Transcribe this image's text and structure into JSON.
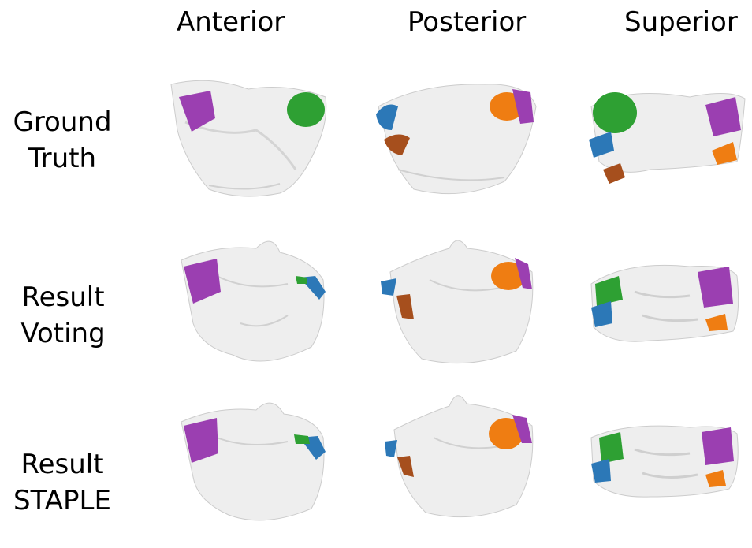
{
  "columns": [
    {
      "label": "Anterior"
    },
    {
      "label": "Posterior"
    },
    {
      "label": "Superior"
    }
  ],
  "rows": [
    {
      "line1": "Ground",
      "line2": "Truth"
    },
    {
      "line1": "Result",
      "line2": "Voting"
    },
    {
      "line1": "Result",
      "line2": "STAPLE"
    }
  ],
  "colors": {
    "purple": "#9b3fb1",
    "green": "#2ea033",
    "blue": "#2c78b7",
    "orange": "#ef7d12",
    "brown": "#a64f1d",
    "surface": "#eeeeee",
    "shadow": "#c8c8c8"
  }
}
